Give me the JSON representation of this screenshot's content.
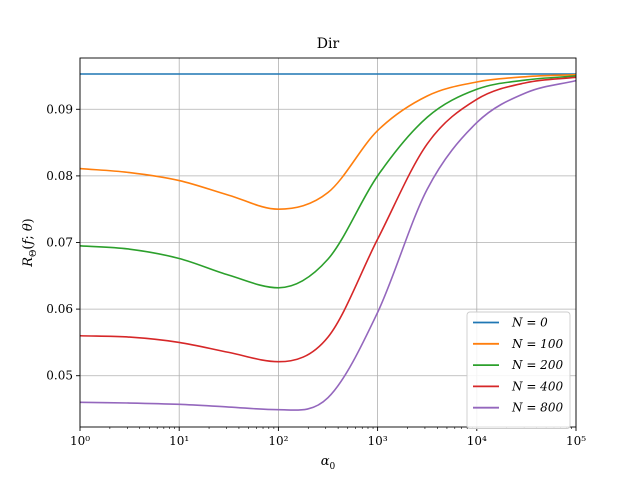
{
  "chart_data": {
    "type": "line",
    "title": "Dir",
    "xlabel": "α₀",
    "ylabel": "R_Θ(f; θ)",
    "x_scale": "log",
    "xlim": [
      1,
      100000
    ],
    "ylim": [
      0.0423,
      0.0977
    ],
    "grid": true,
    "legend_position": "lower-right",
    "x_ticks": [
      1,
      10,
      100,
      1000,
      10000,
      100000
    ],
    "x_tick_labels": [
      "10⁰",
      "10¹",
      "10²",
      "10³",
      "10⁴",
      "10⁵"
    ],
    "y_ticks": [
      0.05,
      0.06,
      0.07,
      0.08,
      0.09
    ],
    "y_tick_labels": [
      "0.05",
      "0.06",
      "0.07",
      "0.08",
      "0.09"
    ],
    "series": [
      {
        "name": "N = 0",
        "color": "#1f77b4",
        "x": [
          1,
          100000
        ],
        "y": [
          0.0953,
          0.0953
        ]
      },
      {
        "name": "N = 100",
        "color": "#ff7f0e",
        "x": [
          1,
          3.16,
          10,
          31.6,
          100,
          316,
          1000,
          3162,
          10000,
          31623,
          100000
        ],
        "y": [
          0.0811,
          0.0805,
          0.0793,
          0.0771,
          0.075,
          0.0775,
          0.0868,
          0.092,
          0.0941,
          0.0949,
          0.0952
        ]
      },
      {
        "name": "N = 200",
        "color": "#2ca02c",
        "x": [
          1,
          3.16,
          10,
          31.6,
          100,
          316,
          1000,
          3162,
          10000,
          31623,
          100000
        ],
        "y": [
          0.0695,
          0.069,
          0.0676,
          0.0651,
          0.0632,
          0.0675,
          0.08,
          0.0888,
          0.093,
          0.0944,
          0.095
        ]
      },
      {
        "name": "N = 400",
        "color": "#d62728",
        "x": [
          1,
          3.16,
          10,
          31.6,
          100,
          316,
          1000,
          3162,
          10000,
          31623,
          100000
        ],
        "y": [
          0.056,
          0.0558,
          0.055,
          0.0535,
          0.0521,
          0.0558,
          0.0705,
          0.0848,
          0.0915,
          0.094,
          0.0948
        ]
      },
      {
        "name": "N = 800",
        "color": "#9467bd",
        "x": [
          1,
          3.16,
          10,
          31.6,
          100,
          316,
          1000,
          3162,
          10000,
          31623,
          100000
        ],
        "y": [
          0.046,
          0.0459,
          0.0457,
          0.0453,
          0.0449,
          0.0467,
          0.0595,
          0.078,
          0.088,
          0.0925,
          0.0943
        ]
      }
    ]
  }
}
